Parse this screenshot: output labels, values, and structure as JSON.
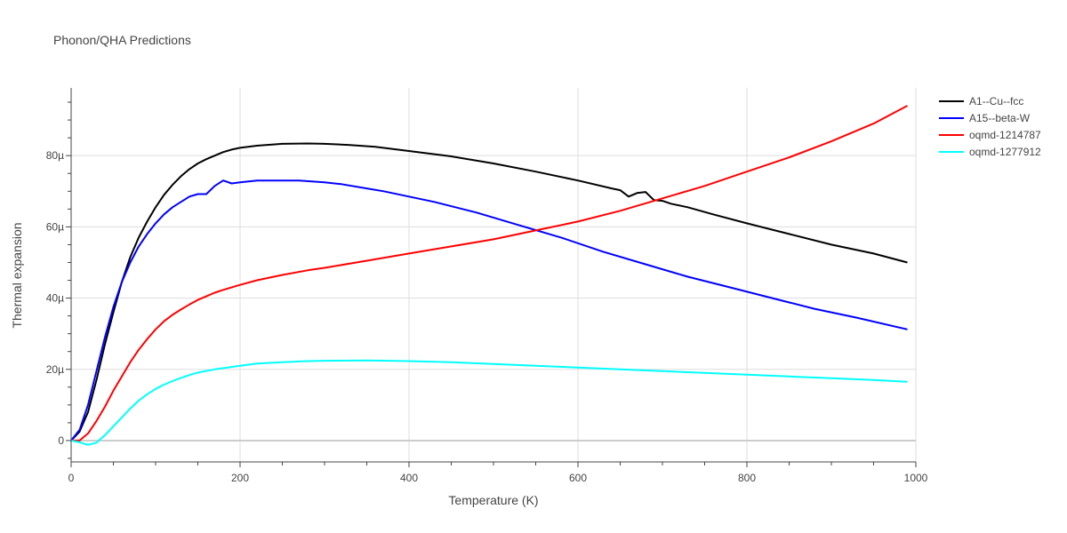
{
  "title": "Phonon/QHA Predictions",
  "chart_data": {
    "type": "line",
    "title": "Phonon/QHA Predictions",
    "xlabel": "Temperature (K)",
    "ylabel": "Thermal expansion",
    "xlim": [
      0,
      1000
    ],
    "ylim": [
      -6,
      99
    ],
    "x_ticks": [
      0,
      200,
      400,
      600,
      800,
      1000
    ],
    "x_tick_labels": [
      "0",
      "200",
      "400",
      "600",
      "800",
      "1000"
    ],
    "y_ticks": [
      0,
      20,
      40,
      60,
      80
    ],
    "y_tick_labels": [
      "0",
      "20µ",
      "40µ",
      "60µ",
      "80µ"
    ],
    "y_units": "1e-6 /K",
    "grid": true,
    "legend_position": "top-right",
    "series": [
      {
        "name": "A1--Cu--fcc",
        "color": "#000000",
        "points": [
          [
            0,
            0
          ],
          [
            10,
            2.5
          ],
          [
            20,
            8
          ],
          [
            30,
            17
          ],
          [
            40,
            27
          ],
          [
            50,
            36
          ],
          [
            60,
            44.5
          ],
          [
            70,
            51.5
          ],
          [
            80,
            57
          ],
          [
            90,
            61.5
          ],
          [
            100,
            65.5
          ],
          [
            110,
            69
          ],
          [
            120,
            71.8
          ],
          [
            130,
            74.2
          ],
          [
            140,
            76.2
          ],
          [
            150,
            77.8
          ],
          [
            160,
            79
          ],
          [
            170,
            80
          ],
          [
            180,
            81
          ],
          [
            190,
            81.7
          ],
          [
            200,
            82.2
          ],
          [
            220,
            82.8
          ],
          [
            250,
            83.3
          ],
          [
            280,
            83.4
          ],
          [
            300,
            83.3
          ],
          [
            330,
            83
          ],
          [
            360,
            82.5
          ],
          [
            400,
            81.3
          ],
          [
            450,
            79.8
          ],
          [
            500,
            77.8
          ],
          [
            550,
            75.5
          ],
          [
            600,
            73
          ],
          [
            640,
            70.8
          ],
          [
            650,
            70.3
          ],
          [
            660,
            68.5
          ],
          [
            670,
            69.5
          ],
          [
            680,
            69.8
          ],
          [
            690,
            67.5
          ],
          [
            700,
            67.3
          ],
          [
            710,
            66.5
          ],
          [
            730,
            65.5
          ],
          [
            760,
            63.5
          ],
          [
            800,
            61
          ],
          [
            850,
            58
          ],
          [
            900,
            55
          ],
          [
            950,
            52.5
          ],
          [
            990,
            50
          ]
        ]
      },
      {
        "name": "A15--beta-W",
        "color": "#0000ff",
        "points": [
          [
            0,
            0
          ],
          [
            10,
            3
          ],
          [
            20,
            10
          ],
          [
            30,
            19.5
          ],
          [
            40,
            29
          ],
          [
            50,
            37.5
          ],
          [
            60,
            44.5
          ],
          [
            70,
            50
          ],
          [
            80,
            54.5
          ],
          [
            90,
            58
          ],
          [
            100,
            61
          ],
          [
            110,
            63.5
          ],
          [
            120,
            65.5
          ],
          [
            130,
            67
          ],
          [
            140,
            68.5
          ],
          [
            150,
            69.2
          ],
          [
            160,
            69.2
          ],
          [
            170,
            71.5
          ],
          [
            180,
            73
          ],
          [
            190,
            72.2
          ],
          [
            200,
            72.5
          ],
          [
            220,
            73
          ],
          [
            250,
            73
          ],
          [
            270,
            73
          ],
          [
            300,
            72.5
          ],
          [
            320,
            72
          ],
          [
            350,
            70.8
          ],
          [
            370,
            70
          ],
          [
            400,
            68.5
          ],
          [
            430,
            67
          ],
          [
            480,
            64
          ],
          [
            530,
            60.5
          ],
          [
            580,
            57
          ],
          [
            630,
            53
          ],
          [
            680,
            49.5
          ],
          [
            730,
            46
          ],
          [
            780,
            43
          ],
          [
            830,
            40
          ],
          [
            880,
            37
          ],
          [
            930,
            34.5
          ],
          [
            990,
            31.2
          ]
        ]
      },
      {
        "name": "oqmd-1214787",
        "color": "#ff0000",
        "points": [
          [
            0,
            0
          ],
          [
            10,
            0
          ],
          [
            20,
            2
          ],
          [
            30,
            5.5
          ],
          [
            40,
            9.5
          ],
          [
            50,
            14
          ],
          [
            60,
            18
          ],
          [
            70,
            22
          ],
          [
            80,
            25.5
          ],
          [
            90,
            28.5
          ],
          [
            100,
            31.2
          ],
          [
            110,
            33.5
          ],
          [
            120,
            35.3
          ],
          [
            130,
            36.8
          ],
          [
            140,
            38.2
          ],
          [
            150,
            39.5
          ],
          [
            160,
            40.5
          ],
          [
            170,
            41.5
          ],
          [
            180,
            42.3
          ],
          [
            200,
            43.7
          ],
          [
            220,
            45
          ],
          [
            250,
            46.5
          ],
          [
            280,
            47.8
          ],
          [
            300,
            48.5
          ],
          [
            350,
            50.5
          ],
          [
            400,
            52.5
          ],
          [
            450,
            54.5
          ],
          [
            500,
            56.5
          ],
          [
            550,
            59
          ],
          [
            600,
            61.5
          ],
          [
            650,
            64.5
          ],
          [
            700,
            68
          ],
          [
            750,
            71.5
          ],
          [
            800,
            75.5
          ],
          [
            850,
            79.5
          ],
          [
            900,
            84
          ],
          [
            950,
            89
          ],
          [
            990,
            94
          ]
        ]
      },
      {
        "name": "oqmd-1277912",
        "color": "#00ffff",
        "points": [
          [
            0,
            0
          ],
          [
            10,
            -0.5
          ],
          [
            20,
            -1.2
          ],
          [
            30,
            -0.6
          ],
          [
            40,
            1.5
          ],
          [
            50,
            4
          ],
          [
            60,
            6.5
          ],
          [
            70,
            9
          ],
          [
            80,
            11.2
          ],
          [
            90,
            13
          ],
          [
            100,
            14.5
          ],
          [
            110,
            15.7
          ],
          [
            120,
            16.7
          ],
          [
            130,
            17.6
          ],
          [
            140,
            18.4
          ],
          [
            150,
            19.1
          ],
          [
            170,
            20
          ],
          [
            200,
            21
          ],
          [
            220,
            21.6
          ],
          [
            250,
            22
          ],
          [
            280,
            22.3
          ],
          [
            300,
            22.4
          ],
          [
            350,
            22.5
          ],
          [
            400,
            22.3
          ],
          [
            450,
            22
          ],
          [
            500,
            21.5
          ],
          [
            550,
            21
          ],
          [
            600,
            20.5
          ],
          [
            650,
            20
          ],
          [
            700,
            19.5
          ],
          [
            750,
            19
          ],
          [
            800,
            18.5
          ],
          [
            850,
            18
          ],
          [
            900,
            17.5
          ],
          [
            950,
            17
          ],
          [
            990,
            16.5
          ]
        ]
      }
    ]
  }
}
